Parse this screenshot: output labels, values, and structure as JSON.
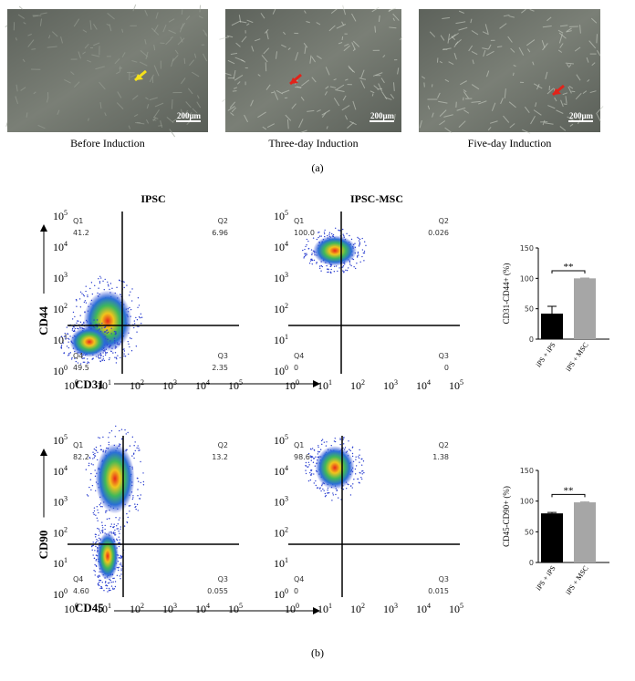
{
  "panel_a": {
    "images": [
      {
        "caption": "Before Induction",
        "scale_bar": "200μm"
      },
      {
        "caption": "Three-day Induction",
        "scale_bar": "200μm"
      },
      {
        "caption": "Five-day Induction",
        "scale_bar": "200μm"
      }
    ],
    "label": "(a)"
  },
  "panel_b": {
    "column_titles": [
      "IPSC",
      "IPSC-MSC"
    ],
    "axis_ticks": [
      {
        "base": "10",
        "exponent": "0"
      },
      {
        "base": "10",
        "exponent": "1"
      },
      {
        "base": "10",
        "exponent": "2"
      },
      {
        "base": "10",
        "exponent": "3"
      },
      {
        "base": "10",
        "exponent": "4"
      },
      {
        "base": "10",
        "exponent": "5"
      }
    ],
    "rows": [
      {
        "y_label": "CD44",
        "x_label": "CD31",
        "plots": [
          {
            "quadrants": [
              {
                "name": "Q1",
                "value": "41.2"
              },
              {
                "name": "Q2",
                "value": "6.96"
              },
              {
                "name": "Q3",
                "value": "2.35"
              },
              {
                "name": "Q4",
                "value": "49.5"
              }
            ]
          },
          {
            "quadrants": [
              {
                "name": "Q1",
                "value": "100.0"
              },
              {
                "name": "Q2",
                "value": "0.026"
              },
              {
                "name": "Q3",
                "value": "0"
              },
              {
                "name": "Q4",
                "value": "0"
              }
            ]
          }
        ]
      },
      {
        "y_label": "CD90",
        "x_label": "CD45",
        "plots": [
          {
            "quadrants": [
              {
                "name": "Q1",
                "value": "82.2"
              },
              {
                "name": "Q2",
                "value": "13.2"
              },
              {
                "name": "Q3",
                "value": "0.055"
              },
              {
                "name": "Q4",
                "value": "4.60"
              }
            ]
          },
          {
            "quadrants": [
              {
                "name": "Q1",
                "value": "98.6"
              },
              {
                "name": "Q2",
                "value": "1.38"
              },
              {
                "name": "Q3",
                "value": "0.015"
              },
              {
                "name": "Q4",
                "value": "0"
              }
            ]
          }
        ]
      }
    ],
    "bar_charts": [
      {
        "type": "bar",
        "y_label": "CD31-CD44+ (%)",
        "categories": [
          "iPS + iPS",
          "iPS + MSC"
        ],
        "values": [
          42,
          100
        ],
        "errors": [
          12,
          0.5
        ],
        "colors": [
          "#000000",
          "#a6a6a6"
        ],
        "ylim": [
          0,
          150
        ],
        "yticks": [
          0,
          50,
          100,
          150
        ],
        "annotation": "**"
      },
      {
        "type": "bar",
        "y_label": "CD45-CD90+ (%)",
        "categories": [
          "iPS + iPS",
          "iPS + MSC"
        ],
        "values": [
          80,
          98
        ],
        "errors": [
          1.5,
          1
        ],
        "colors": [
          "#000000",
          "#a6a6a6"
        ],
        "ylim": [
          0,
          150
        ],
        "yticks": [
          0,
          50,
          100,
          150
        ],
        "annotation": "**"
      }
    ],
    "label": "(b)"
  }
}
